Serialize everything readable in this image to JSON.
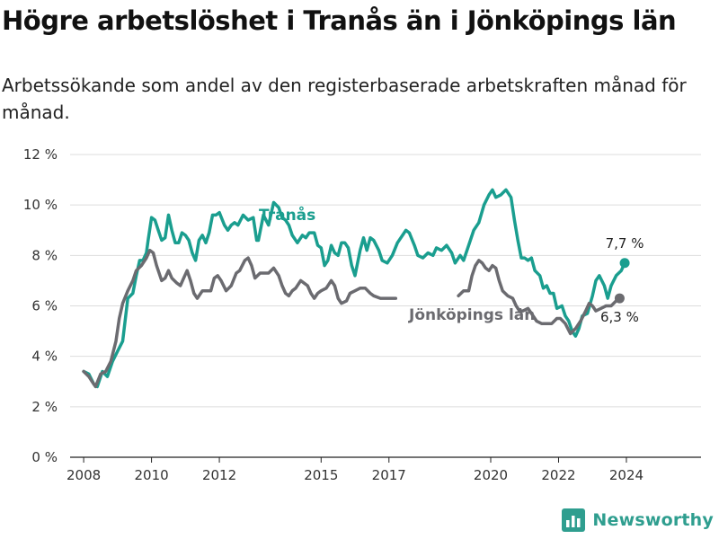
{
  "header": {
    "title": "Högre arbetslöshet i Tranås än i Jönköpings län",
    "subtitle": "Arbetssökande som andel av den registerbaserade arbetskraften månad för månad."
  },
  "footer": {
    "brand": "Newsworthy",
    "brand_icon": "bar-chart-logo-icon"
  },
  "colors": {
    "tranas": "#1a9e8f",
    "lan": "#6b6b70",
    "axis": "#222222",
    "grid": "#dddddd",
    "brand": "#2f9e8f"
  },
  "chart_data": {
    "type": "line",
    "title": "Högre arbetslöshet i Tranås än i Jönköpings län",
    "subtitle": "Arbetssökande som andel av den registerbaserade arbetskraften månad för månad.",
    "xlabel": "",
    "ylabel": "",
    "xlim": [
      2007.6,
      2026.2
    ],
    "ylim": [
      0,
      12
    ],
    "grid": "horizontal",
    "x_ticks": [
      {
        "value": 2008,
        "label": "2008"
      },
      {
        "value": 2010,
        "label": "2010"
      },
      {
        "value": 2012,
        "label": "2012"
      },
      {
        "value": 2015,
        "label": "2015"
      },
      {
        "value": 2017,
        "label": "2017"
      },
      {
        "value": 2020,
        "label": "2020"
      },
      {
        "value": 2022,
        "label": "2022"
      },
      {
        "value": 2024,
        "label": "2024"
      }
    ],
    "y_ticks": [
      {
        "value": 0,
        "label": "0 %"
      },
      {
        "value": 2,
        "label": "2 %"
      },
      {
        "value": 4,
        "label": "4 %"
      },
      {
        "value": 6,
        "label": "6 %"
      },
      {
        "value": 8,
        "label": "8 %"
      },
      {
        "value": 10,
        "label": "10 %"
      },
      {
        "value": 12,
        "label": "12 %"
      }
    ],
    "series": [
      {
        "name": "Tranås",
        "color": "#1a9e8f",
        "label_value": "7,7 %",
        "points": [
          [
            2008.0,
            3.4
          ],
          [
            2008.15,
            3.3
          ],
          [
            2008.3,
            2.9
          ],
          [
            2008.4,
            2.8
          ],
          [
            2008.55,
            3.4
          ],
          [
            2008.7,
            3.2
          ],
          [
            2008.85,
            3.8
          ],
          [
            2009.0,
            4.2
          ],
          [
            2009.15,
            4.6
          ],
          [
            2009.3,
            6.3
          ],
          [
            2009.45,
            6.5
          ],
          [
            2009.55,
            7.2
          ],
          [
            2009.65,
            7.8
          ],
          [
            2009.75,
            7.8
          ],
          [
            2009.85,
            8.1
          ],
          [
            2009.9,
            8.6
          ],
          [
            2010.0,
            9.5
          ],
          [
            2010.1,
            9.4
          ],
          [
            2010.2,
            9.0
          ],
          [
            2010.3,
            8.6
          ],
          [
            2010.4,
            8.7
          ],
          [
            2010.5,
            9.6
          ],
          [
            2010.6,
            9.0
          ],
          [
            2010.7,
            8.5
          ],
          [
            2010.8,
            8.5
          ],
          [
            2010.9,
            8.9
          ],
          [
            2011.0,
            8.8
          ],
          [
            2011.1,
            8.6
          ],
          [
            2011.2,
            8.1
          ],
          [
            2011.3,
            7.8
          ],
          [
            2011.4,
            8.6
          ],
          [
            2011.5,
            8.8
          ],
          [
            2011.6,
            8.5
          ],
          [
            2011.7,
            8.9
          ],
          [
            2011.8,
            9.6
          ],
          [
            2011.9,
            9.6
          ],
          [
            2012.0,
            9.7
          ],
          [
            2012.15,
            9.2
          ],
          [
            2012.25,
            9.0
          ],
          [
            2012.35,
            9.2
          ],
          [
            2012.45,
            9.3
          ],
          [
            2012.55,
            9.2
          ],
          [
            2012.7,
            9.6
          ],
          [
            2012.85,
            9.4
          ],
          [
            2013.0,
            9.5
          ],
          [
            2013.1,
            8.6
          ],
          [
            2013.15,
            8.6
          ],
          [
            2013.3,
            9.6
          ],
          [
            2013.45,
            9.2
          ],
          [
            2013.6,
            10.1
          ],
          [
            2013.75,
            9.9
          ],
          [
            2013.85,
            9.5
          ],
          [
            2013.95,
            9.4
          ],
          [
            2014.05,
            9.2
          ],
          [
            2014.15,
            8.8
          ],
          [
            2014.3,
            8.5
          ],
          [
            2014.45,
            8.8
          ],
          [
            2014.55,
            8.7
          ],
          [
            2014.65,
            8.9
          ],
          [
            2014.8,
            8.9
          ],
          [
            2014.9,
            8.4
          ],
          [
            2015.0,
            8.3
          ],
          [
            2015.1,
            7.6
          ],
          [
            2015.2,
            7.8
          ],
          [
            2015.3,
            8.4
          ],
          [
            2015.4,
            8.1
          ],
          [
            2015.5,
            8.0
          ],
          [
            2015.6,
            8.5
          ],
          [
            2015.7,
            8.5
          ],
          [
            2015.8,
            8.3
          ],
          [
            2015.9,
            7.6
          ],
          [
            2016.0,
            7.2
          ],
          [
            2016.15,
            8.2
          ],
          [
            2016.25,
            8.7
          ],
          [
            2016.35,
            8.2
          ],
          [
            2016.45,
            8.7
          ],
          [
            2016.55,
            8.6
          ],
          [
            2016.7,
            8.2
          ],
          [
            2016.8,
            7.8
          ],
          [
            2016.95,
            7.7
          ],
          [
            2017.1,
            8.0
          ],
          [
            2017.25,
            8.5
          ],
          [
            2017.4,
            8.8
          ],
          [
            2017.5,
            9.0
          ],
          [
            2017.6,
            8.9
          ],
          [
            2017.75,
            8.4
          ],
          [
            2017.85,
            8.0
          ],
          [
            2018.0,
            7.9
          ],
          [
            2018.15,
            8.1
          ],
          [
            2018.3,
            8.0
          ],
          [
            2018.4,
            8.3
          ],
          [
            2018.55,
            8.2
          ],
          [
            2018.7,
            8.4
          ],
          [
            2018.85,
            8.1
          ],
          [
            2018.95,
            7.7
          ],
          [
            2019.1,
            8.0
          ],
          [
            2019.2,
            7.8
          ],
          [
            2019.35,
            8.4
          ],
          [
            2019.5,
            9.0
          ],
          [
            2019.65,
            9.3
          ],
          [
            2019.8,
            10.0
          ],
          [
            2019.95,
            10.4
          ],
          [
            2020.05,
            10.6
          ],
          [
            2020.15,
            10.3
          ],
          [
            2020.3,
            10.4
          ],
          [
            2020.45,
            10.6
          ],
          [
            2020.6,
            10.3
          ],
          [
            2020.7,
            9.4
          ],
          [
            2020.8,
            8.6
          ],
          [
            2020.9,
            7.9
          ],
          [
            2021.0,
            7.9
          ],
          [
            2021.1,
            7.8
          ],
          [
            2021.2,
            7.9
          ],
          [
            2021.3,
            7.4
          ],
          [
            2021.45,
            7.2
          ],
          [
            2021.55,
            6.7
          ],
          [
            2021.65,
            6.8
          ],
          [
            2021.75,
            6.5
          ],
          [
            2021.85,
            6.5
          ],
          [
            2021.95,
            5.9
          ],
          [
            2022.1,
            6.0
          ],
          [
            2022.2,
            5.6
          ],
          [
            2022.3,
            5.4
          ],
          [
            2022.4,
            5.0
          ],
          [
            2022.5,
            4.8
          ],
          [
            2022.6,
            5.1
          ],
          [
            2022.7,
            5.6
          ],
          [
            2022.85,
            5.7
          ],
          [
            2023.0,
            6.4
          ],
          [
            2023.1,
            7.0
          ],
          [
            2023.2,
            7.2
          ],
          [
            2023.35,
            6.8
          ],
          [
            2023.45,
            6.3
          ],
          [
            2023.55,
            6.8
          ],
          [
            2023.7,
            7.2
          ],
          [
            2023.85,
            7.4
          ],
          [
            2023.95,
            7.7
          ]
        ]
      },
      {
        "name": "Jönköpings län",
        "color": "#6b6b70",
        "label_value": "6,3 %",
        "points": [
          [
            2008.0,
            3.4
          ],
          [
            2008.15,
            3.2
          ],
          [
            2008.25,
            3.0
          ],
          [
            2008.35,
            2.8
          ],
          [
            2008.5,
            3.3
          ],
          [
            2008.65,
            3.4
          ],
          [
            2008.8,
            3.8
          ],
          [
            2008.95,
            4.6
          ],
          [
            2009.05,
            5.5
          ],
          [
            2009.15,
            6.1
          ],
          [
            2009.3,
            6.6
          ],
          [
            2009.45,
            7.0
          ],
          [
            2009.55,
            7.4
          ],
          [
            2009.7,
            7.6
          ],
          [
            2009.85,
            7.9
          ],
          [
            2009.95,
            8.2
          ],
          [
            2010.05,
            8.1
          ],
          [
            2010.15,
            7.6
          ],
          [
            2010.3,
            7.0
          ],
          [
            2010.4,
            7.1
          ],
          [
            2010.5,
            7.4
          ],
          [
            2010.6,
            7.1
          ],
          [
            2010.75,
            6.9
          ],
          [
            2010.85,
            6.8
          ],
          [
            2010.95,
            7.1
          ],
          [
            2011.05,
            7.4
          ],
          [
            2011.15,
            7.0
          ],
          [
            2011.25,
            6.5
          ],
          [
            2011.35,
            6.3
          ],
          [
            2011.5,
            6.6
          ],
          [
            2011.6,
            6.6
          ],
          [
            2011.75,
            6.6
          ],
          [
            2011.85,
            7.1
          ],
          [
            2011.95,
            7.2
          ],
          [
            2012.05,
            7.0
          ],
          [
            2012.2,
            6.6
          ],
          [
            2012.35,
            6.8
          ],
          [
            2012.5,
            7.3
          ],
          [
            2012.6,
            7.4
          ],
          [
            2012.75,
            7.8
          ],
          [
            2012.85,
            7.9
          ],
          [
            2012.95,
            7.6
          ],
          [
            2013.05,
            7.1
          ],
          [
            2013.2,
            7.3
          ],
          [
            2013.3,
            7.3
          ],
          [
            2013.45,
            7.3
          ],
          [
            2013.6,
            7.5
          ],
          [
            2013.75,
            7.2
          ],
          [
            2013.85,
            6.8
          ],
          [
            2013.95,
            6.5
          ],
          [
            2014.05,
            6.4
          ],
          [
            2014.15,
            6.6
          ],
          [
            2014.25,
            6.7
          ],
          [
            2014.4,
            7.0
          ],
          [
            2014.5,
            6.9
          ],
          [
            2014.6,
            6.8
          ],
          [
            2014.7,
            6.5
          ],
          [
            2014.8,
            6.3
          ],
          [
            2014.9,
            6.5
          ],
          [
            2015.0,
            6.6
          ],
          [
            2015.15,
            6.7
          ],
          [
            2015.3,
            7.0
          ],
          [
            2015.4,
            6.8
          ],
          [
            2015.5,
            6.3
          ],
          [
            2015.6,
            6.1
          ],
          [
            2015.75,
            6.2
          ],
          [
            2015.85,
            6.5
          ],
          [
            2016.0,
            6.6
          ],
          [
            2016.15,
            6.7
          ],
          [
            2016.3,
            6.7
          ],
          [
            2016.45,
            6.5
          ],
          [
            2016.55,
            6.4
          ],
          [
            2016.55,
            6.4
          ],
          [
            2016.75,
            6.3
          ],
          [
            2016.9,
            6.3
          ],
          [
            2017.05,
            6.3
          ],
          [
            2017.2,
            6.3
          ],
          [
            2019.05,
            6.4
          ],
          [
            2019.2,
            6.6
          ],
          [
            2019.35,
            6.6
          ],
          [
            2019.45,
            7.2
          ],
          [
            2019.55,
            7.6
          ],
          [
            2019.65,
            7.8
          ],
          [
            2019.75,
            7.7
          ],
          [
            2019.85,
            7.5
          ],
          [
            2019.95,
            7.4
          ],
          [
            2020.05,
            7.6
          ],
          [
            2020.15,
            7.5
          ],
          [
            2020.25,
            7.0
          ],
          [
            2020.35,
            6.6
          ],
          [
            2020.5,
            6.4
          ],
          [
            2020.65,
            6.3
          ],
          [
            2020.75,
            6.0
          ],
          [
            2020.85,
            5.8
          ],
          [
            2020.95,
            5.8
          ],
          [
            2021.1,
            5.9
          ],
          [
            2021.2,
            5.7
          ],
          [
            2021.35,
            5.4
          ],
          [
            2021.5,
            5.3
          ],
          [
            2021.65,
            5.3
          ],
          [
            2021.8,
            5.3
          ],
          [
            2021.95,
            5.5
          ],
          [
            2022.05,
            5.5
          ],
          [
            2022.2,
            5.3
          ],
          [
            2022.35,
            4.9
          ],
          [
            2022.5,
            5.1
          ],
          [
            2022.65,
            5.4
          ],
          [
            2022.8,
            5.8
          ],
          [
            2022.9,
            6.1
          ],
          [
            2023.0,
            6.0
          ],
          [
            2023.1,
            5.8
          ],
          [
            2023.25,
            5.9
          ],
          [
            2023.4,
            6.0
          ],
          [
            2023.55,
            6.0
          ],
          [
            2023.7,
            6.2
          ],
          [
            2023.8,
            6.3
          ]
        ]
      }
    ],
    "annotations": [
      {
        "text": "Tranås",
        "series": "Tranås"
      },
      {
        "text": "Jönköpings län",
        "series": "Jönköpings län"
      },
      {
        "text": "7,7 %",
        "series": "Tranås"
      },
      {
        "text": "6,3 %",
        "series": "Jönköpings län"
      }
    ]
  }
}
